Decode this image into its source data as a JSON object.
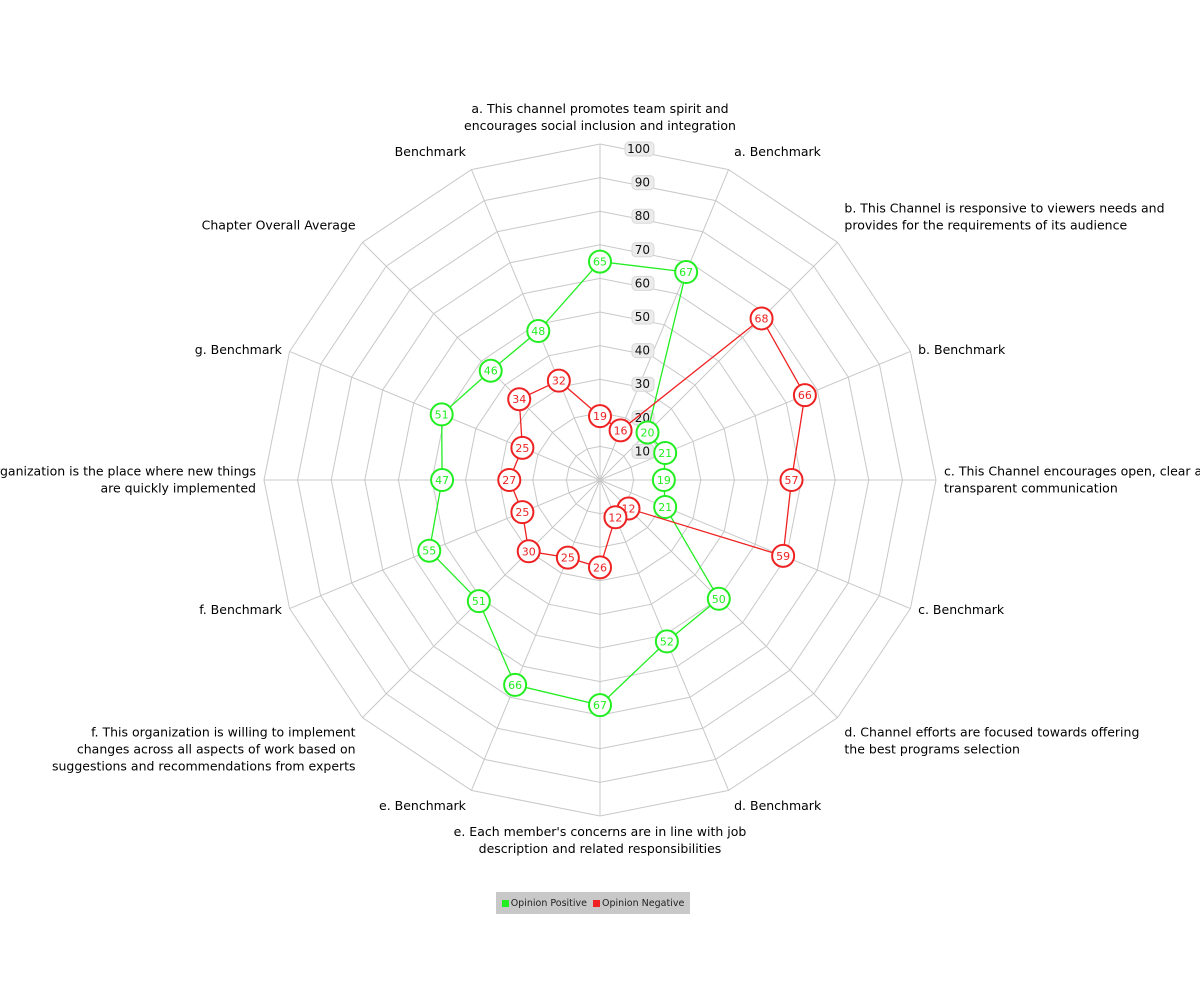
{
  "chart_data": {
    "type": "radar",
    "r_range": [
      0,
      100
    ],
    "ticks": [
      "10",
      "20",
      "30",
      "40",
      "50",
      "60",
      "70",
      "80",
      "90",
      "100"
    ],
    "axes": [
      [
        "a. This channel promotes team spirit and",
        "encourages social inclusion and integration"
      ],
      [
        "a. Benchmark"
      ],
      [
        "b. This Channel is responsive to viewers needs and",
        "provides for the requirements of its audience"
      ],
      [
        "b. Benchmark"
      ],
      [
        "c. This Channel encourages open, clear and",
        "transparent communication"
      ],
      [
        "c. Benchmark"
      ],
      [
        "d. Channel efforts are focused towards offering",
        "the best programs selection"
      ],
      [
        "d. Benchmark"
      ],
      [
        "e. Each member's concerns are in line with job",
        "description and related responsibilities"
      ],
      [
        "e. Benchmark"
      ],
      [
        "f. This organization  is willing to implement",
        "changes across all aspects of work based on",
        "suggestions and recommendations from experts"
      ],
      [
        "f. Benchmark"
      ],
      [
        "g. This organization is the place where new things",
        "are quickly implemented"
      ],
      [
        "g. Benchmark"
      ],
      [
        "Chapter Overall Average"
      ],
      [
        "Benchmark"
      ]
    ],
    "series": [
      {
        "name": "Opinion Positive",
        "color": "#22ee22",
        "values": [
          65,
          67,
          20,
          21,
          19,
          21,
          50,
          52,
          67,
          66,
          51,
          55,
          47,
          51,
          46,
          48
        ]
      },
      {
        "name": "Opinion Negative",
        "color": "#ee2222",
        "values": [
          19,
          16,
          68,
          66,
          57,
          59,
          12,
          12,
          26,
          25,
          30,
          25,
          27,
          25,
          34,
          32
        ]
      }
    ],
    "legend_position": "bottom"
  }
}
